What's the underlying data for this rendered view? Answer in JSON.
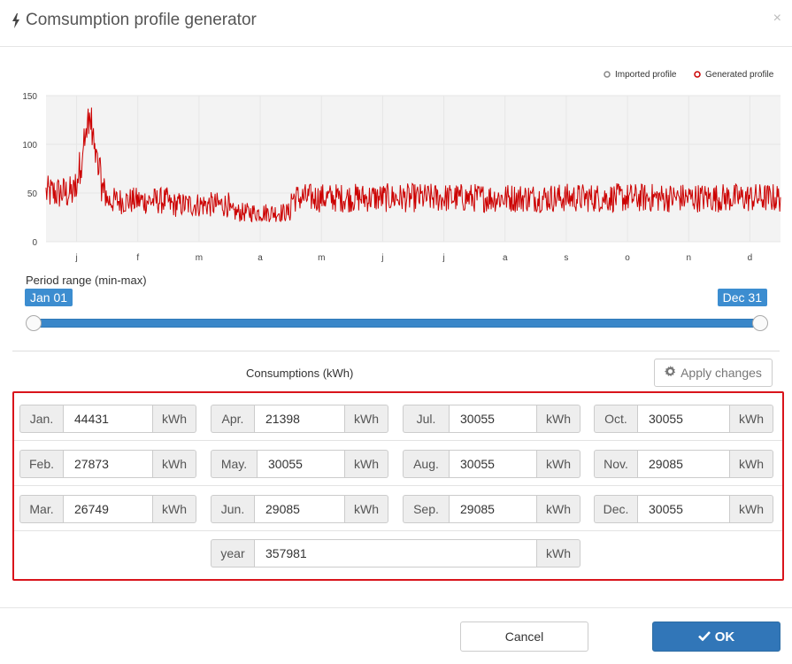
{
  "dialog": {
    "title": "Comsumption profile generator",
    "close_icon": "×"
  },
  "chart_data": {
    "type": "line",
    "x_categories": [
      "j",
      "f",
      "m",
      "a",
      "m",
      "j",
      "j",
      "a",
      "s",
      "o",
      "n",
      "d"
    ],
    "y_ticks": [
      "150",
      "100",
      "50",
      "0"
    ],
    "ylim": [
      0,
      150
    ],
    "grid": true,
    "legend_position": "top-right",
    "legend": [
      {
        "name": "Imported profile",
        "color": "#888888"
      },
      {
        "name": "Generated profile",
        "color": "#cc0000"
      }
    ],
    "series": [
      {
        "name": "Generated profile",
        "color": "#cc0000",
        "month_levels": [
          {
            "month": "j",
            "base": 50,
            "amplitude": 18
          },
          {
            "month": "f",
            "base": 42,
            "amplitude": 14
          },
          {
            "month": "m",
            "base": 38,
            "amplitude": 13
          },
          {
            "month": "a",
            "base": 30,
            "amplitude": 10
          },
          {
            "month": "m",
            "base": 45,
            "amplitude": 15
          },
          {
            "month": "j",
            "base": 45,
            "amplitude": 15
          },
          {
            "month": "j",
            "base": 45,
            "amplitude": 15
          },
          {
            "month": "a",
            "base": 45,
            "amplitude": 15
          },
          {
            "month": "s",
            "base": 45,
            "amplitude": 15
          },
          {
            "month": "o",
            "base": 45,
            "amplitude": 15
          },
          {
            "month": "n",
            "base": 45,
            "amplitude": 15
          },
          {
            "month": "d",
            "base": 45,
            "amplitude": 15
          }
        ],
        "peak": {
          "month": "j",
          "value": 144
        }
      }
    ]
  },
  "period": {
    "label": "Period range (min-max)",
    "min": "Jan 01",
    "max": "Dec 31",
    "min_fraction": 0,
    "max_fraction": 1
  },
  "consumptions": {
    "title": "Consumptions (kWh)",
    "apply_label": "Apply changes",
    "unit": "kWh",
    "months": [
      {
        "label": "Jan.",
        "value": "44431"
      },
      {
        "label": "Apr.",
        "value": "21398"
      },
      {
        "label": "Jul.",
        "value": "30055"
      },
      {
        "label": "Oct.",
        "value": "30055"
      },
      {
        "label": "Feb.",
        "value": "27873"
      },
      {
        "label": "May.",
        "value": "30055"
      },
      {
        "label": "Aug.",
        "value": "30055"
      },
      {
        "label": "Nov.",
        "value": "29085"
      },
      {
        "label": "Mar.",
        "value": "26749"
      },
      {
        "label": "Jun.",
        "value": "29085"
      },
      {
        "label": "Sep.",
        "value": "29085"
      },
      {
        "label": "Dec.",
        "value": "30055"
      }
    ],
    "year": {
      "label": "year",
      "value": "357981"
    }
  },
  "buttons": {
    "cancel": "Cancel",
    "ok": "OK"
  },
  "colors": {
    "accent": "#3176b8",
    "highlight_border": "#d9141b",
    "series": "#cc0000"
  }
}
